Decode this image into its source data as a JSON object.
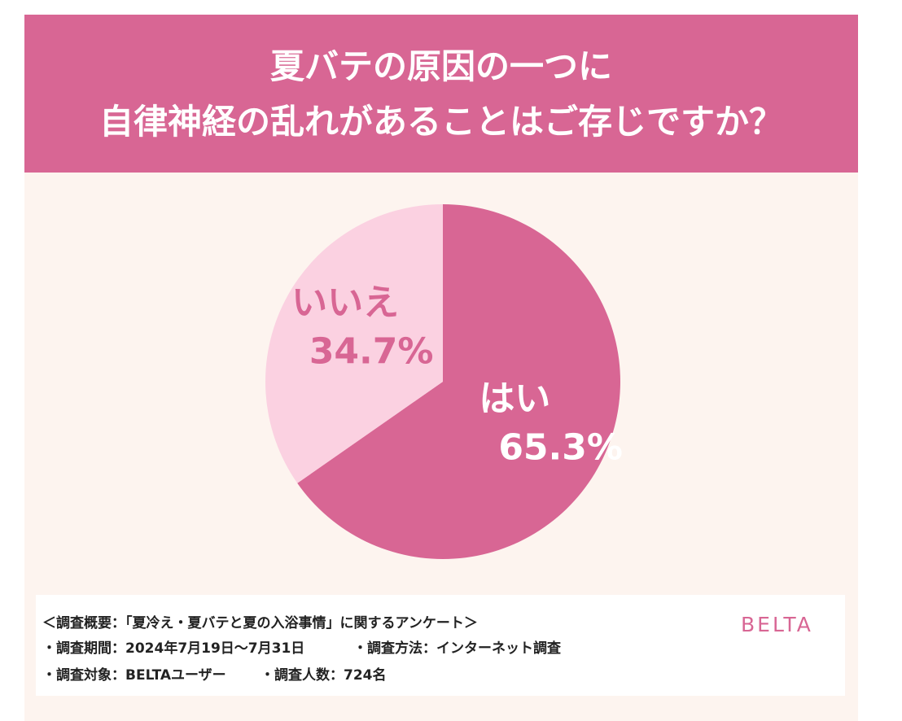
{
  "header": {
    "title_line1": "夏バテの原因の一つに",
    "title_line2": "自律神経の乱れがあることはご存じですか？"
  },
  "chart_data": {
    "type": "pie",
    "title": "夏バテの原因の一つに自律神経の乱れがあることはご存じですか？",
    "slices": [
      {
        "label": "はい",
        "value": 65.3,
        "value_text": "65.3%",
        "color": "#d86694",
        "label_color": "#ffffff"
      },
      {
        "label": "いいえ",
        "value": 34.7,
        "value_text": "34.7%",
        "color": "#fbd1e1",
        "label_color": "#d86694"
      }
    ],
    "start": "12 o'clock, clockwise"
  },
  "footer": {
    "line1": "＜調査概要：「夏冷え・夏バテと夏の入浴事情」に関するアンケート＞",
    "line2a": "・調査期間：2024年7月19日〜7月31日",
    "line2b": "・調査方法：インターネット調査",
    "line3a": "・調査対象：BELTAユーザー",
    "line3b": "・調査人数：724名",
    "brand": "BELTA"
  },
  "colors": {
    "accent": "#d86694",
    "light_pink": "#fbd1e1",
    "background": "#fdf4ef"
  }
}
